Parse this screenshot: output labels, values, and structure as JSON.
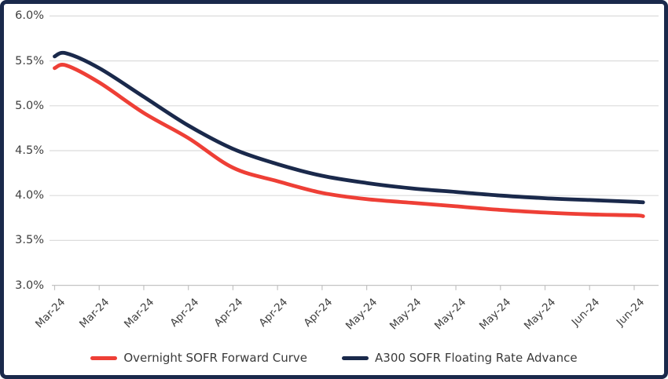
{
  "chart_data": {
    "type": "line",
    "title": "",
    "xlabel": "",
    "ylabel": "",
    "y_format": "percent",
    "ylim": [
      3.0,
      6.0
    ],
    "y_step": 0.5,
    "grid": true,
    "legend_position": "bottom",
    "y_tick_labels": [
      "6.0%",
      "5.5%",
      "5.0%",
      "4.5%",
      "4.0%",
      "3.5%",
      "3.0%"
    ],
    "x_tick_labels": [
      "Mar-24",
      "Mar-24",
      "Mar-24",
      "Apr-24",
      "Apr-24",
      "Apr-24",
      "Apr-24",
      "May-24",
      "May-24",
      "May-24",
      "May-24",
      "May-24",
      "Jun-24",
      "Jun-24"
    ],
    "series": [
      {
        "name": "Overnight SOFR Forward Curve",
        "color": "#EE3F36",
        "x_weeks": [
          0,
          0.26,
          1,
          2,
          3,
          4,
          5,
          6,
          7,
          8,
          9,
          10,
          11,
          12,
          13,
          13.2
        ],
        "values": [
          5.42,
          5.45,
          5.26,
          4.92,
          4.64,
          4.31,
          4.16,
          4.03,
          3.96,
          3.92,
          3.88,
          3.84,
          3.81,
          3.79,
          3.78,
          3.77
        ]
      },
      {
        "name": "A300 SOFR Floating Rate Advance",
        "color": "#1A294B",
        "x_weeks": [
          0,
          0.26,
          1,
          2,
          3,
          4,
          5,
          6,
          7,
          8,
          9,
          10,
          11,
          12,
          13,
          13.2
        ],
        "values": [
          5.55,
          5.585,
          5.42,
          5.1,
          4.78,
          4.52,
          4.35,
          4.22,
          4.14,
          4.08,
          4.04,
          4.0,
          3.97,
          3.95,
          3.93,
          3.925
        ]
      }
    ]
  },
  "colors": {
    "border": "#1A294B",
    "background": "#FFFFFF",
    "gridline": "#DCDCDC",
    "axis": "#C3C3C3",
    "tick_label": "#3F3F3F",
    "legend_text": "#3A3A3A"
  }
}
